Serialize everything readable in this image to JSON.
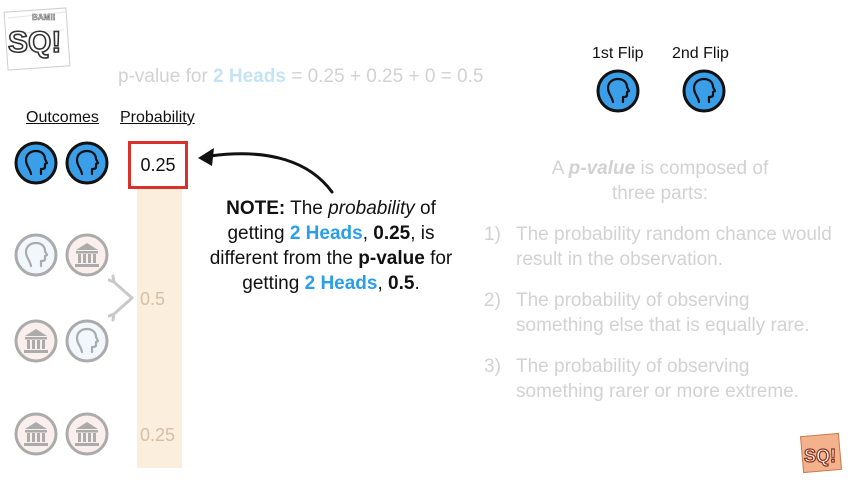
{
  "brand": {
    "logo_text": "SQ!",
    "logo_subtext": "Double BAM!!"
  },
  "pvalue_line": {
    "prefix": "p-value for ",
    "highlight": "2 Heads",
    "equation": " = 0.25 + 0.25 + 0 = 0.5"
  },
  "headers": {
    "outcomes": "Outcomes",
    "probability": "Probability"
  },
  "flips": {
    "first": "1st Flip",
    "second": "2nd Flip"
  },
  "outcome_rows": [
    {
      "coins": [
        "heads",
        "heads"
      ],
      "probability": "0.25",
      "highlighted": true
    },
    {
      "coins": [
        "heads",
        "tails"
      ],
      "probability": "",
      "faded": true
    },
    {
      "coins": [
        "tails",
        "heads"
      ],
      "probability": "",
      "faded": true
    },
    {
      "coins": [
        "tails",
        "tails"
      ],
      "probability": "0.25",
      "faded": true
    }
  ],
  "grouped_probability": "0.5",
  "note": {
    "bold_lead": "NOTE:",
    "t1": " The ",
    "italic": "probability",
    "t2": " of getting ",
    "blue1": "2 Heads",
    "t3": ", ",
    "bold1": "0.25",
    "t4": ", is different from the ",
    "bold2": "p-value",
    "t5": " for getting ",
    "blue2": "2 Heads",
    "t6": ", ",
    "bold3": "0.5",
    "t7": "."
  },
  "pvalue_def": {
    "t1": "A ",
    "bold_italic": "p-value",
    "t2": " is composed of",
    "line2": "three parts:",
    "parts": [
      {
        "num": "1)",
        "text": "The probability random chance would result in the observation."
      },
      {
        "num": "2)",
        "text": "The probability of observing something else that is equally rare."
      },
      {
        "num": "3)",
        "text": "The probability of observing something rarer or more extreme."
      }
    ]
  },
  "colors": {
    "heads_fill": "#3a9ee8",
    "heads_fill_faded": "#d9ebf8",
    "tails_fill_faded": "#f6d3d1",
    "highlight_box": "#d9312a",
    "probability_bar": "#fbeedd",
    "blue_text": "#2a9ee8"
  },
  "icons": {
    "heads": "head-silhouette-icon",
    "tails": "temple-icon"
  }
}
